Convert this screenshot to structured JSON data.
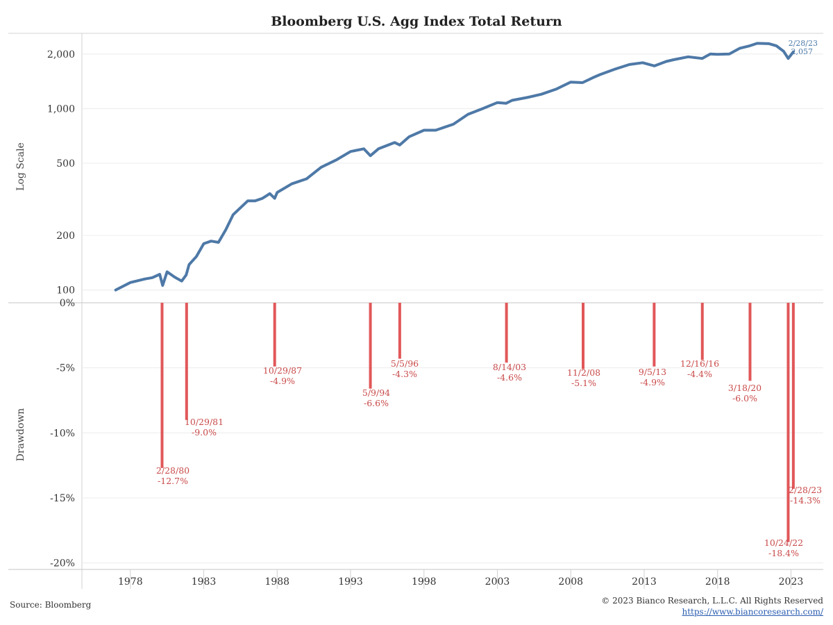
{
  "chart_data": [
    {
      "type": "line",
      "title": "Bloomberg U.S. Agg Index Total Return",
      "ylabel": "Log Scale",
      "scale": "log",
      "ylim": [
        85,
        2600
      ],
      "yticks": [
        100,
        200,
        500,
        1000,
        2000
      ],
      "ytick_labels": [
        "100",
        "200",
        "500",
        "1,000",
        "2,000"
      ],
      "color": "#4e79a7",
      "series": [
        {
          "x": [
            1977.0,
            1978.0,
            1979.0,
            1979.5,
            1980.0,
            1980.2,
            1980.5,
            1981.0,
            1981.5,
            1981.8,
            1982.0,
            1982.5,
            1983.0,
            1983.5,
            1984.0,
            1984.5,
            1985.0,
            1986.0,
            1986.5,
            1987.0,
            1987.5,
            1987.83,
            1988.0,
            1989.0,
            1990.0,
            1991.0,
            1992.0,
            1993.0,
            1993.9,
            1994.35,
            1994.9,
            1996.0,
            1996.35,
            1997.0,
            1998.0,
            1998.8,
            2000.0,
            2001.0,
            2002.0,
            2003.0,
            2003.6,
            2004.0,
            2005.0,
            2006.0,
            2007.0,
            2008.0,
            2008.8,
            2009.5,
            2010.0,
            2011.0,
            2012.0,
            2012.9,
            2013.7,
            2014.5,
            2015.0,
            2016.0,
            2016.95,
            2017.5,
            2018.0,
            2018.8,
            2019.5,
            2020.2,
            2020.7,
            2021.5,
            2022.0,
            2022.5,
            2022.81,
            2023.16
          ],
          "y": [
            100,
            110,
            115,
            117,
            122,
            106,
            126,
            118,
            112,
            121,
            138,
            153,
            180,
            186,
            183,
            215,
            260,
            310,
            310,
            320,
            340,
            320,
            345,
            385,
            410,
            475,
            520,
            580,
            600,
            550,
            600,
            650,
            630,
            700,
            760,
            760,
            820,
            930,
            1000,
            1080,
            1070,
            1110,
            1150,
            1200,
            1280,
            1400,
            1390,
            1480,
            1540,
            1650,
            1750,
            1790,
            1720,
            1820,
            1860,
            1930,
            1890,
            2000,
            1990,
            2000,
            2150,
            2220,
            2290,
            2280,
            2220,
            2070,
            1890,
            2057
          ]
        }
      ],
      "annotations": [
        {
          "date": "2/28/23",
          "value": "2,057"
        }
      ]
    },
    {
      "type": "bar",
      "ylabel": "Drawdown",
      "ylim": [
        -20.5,
        0
      ],
      "yticks": [
        0,
        -5,
        -10,
        -15,
        -20
      ],
      "ytick_labels": [
        "0%",
        "-5%",
        "-10%",
        "-15%",
        "-20%"
      ],
      "color": "#e15759",
      "series": [
        {
          "x": [
            1980.16,
            1981.83,
            1987.83,
            1994.35,
            1996.35,
            2003.62,
            2008.84,
            2013.68,
            2016.96,
            2020.21,
            2022.81,
            2023.16
          ],
          "y": [
            -12.7,
            -9.0,
            -4.9,
            -6.6,
            -4.3,
            -4.6,
            -5.1,
            -4.9,
            -4.4,
            -6.0,
            -18.4,
            -14.3
          ]
        }
      ],
      "annotations": [
        {
          "date": "2/28/80",
          "value": "-12.7%"
        },
        {
          "date": "10/29/81",
          "value": "-9.0%"
        },
        {
          "date": "10/29/87",
          "value": "-4.9%"
        },
        {
          "date": "5/9/94",
          "value": "-6.6%"
        },
        {
          "date": "5/5/96",
          "value": "-4.3%"
        },
        {
          "date": "8/14/03",
          "value": "-4.6%"
        },
        {
          "date": "11/2/08",
          "value": "-5.1%"
        },
        {
          "date": "9/5/13",
          "value": "-4.9%"
        },
        {
          "date": "12/16/16",
          "value": "-4.4%"
        },
        {
          "date": "3/18/20",
          "value": "-6.0%"
        },
        {
          "date": "10/24/22",
          "value": "-18.4%"
        },
        {
          "date": "2/28/23",
          "value": "-14.3%"
        }
      ]
    }
  ],
  "xaxis": {
    "xlim": [
      1974.7,
      2025.2
    ],
    "ticks": [
      1978,
      1983,
      1988,
      1993,
      1998,
      2003,
      2008,
      2013,
      2018,
      2023
    ],
    "labels": [
      "1978",
      "1983",
      "1988",
      "1993",
      "1998",
      "2003",
      "2008",
      "2013",
      "2018",
      "2023"
    ]
  },
  "footer": {
    "source": "Source: Bloomberg",
    "copyright": "© 2023 Bianco Research, L.L.C. All Rights Reserved",
    "url": "https://www.biancoresearch.com/"
  }
}
